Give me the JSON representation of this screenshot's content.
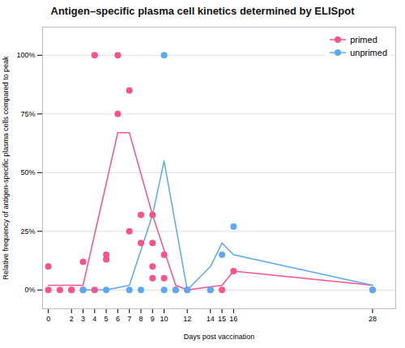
{
  "chart_data": {
    "type": "scatter",
    "title": "Antigen–specific plasma cell kinetics determined by ELISpot",
    "xlabel": "Days post vaccination",
    "ylabel": "Relative frequency of antigen-specific plasma cells compared to peak",
    "series": [
      {
        "name": "primed",
        "type": "line",
        "color": "#F8538D",
        "x": [
          0,
          3,
          6,
          7,
          9,
          11,
          12,
          15,
          16,
          28
        ],
        "values": [
          2,
          2,
          67,
          67,
          32,
          2,
          0,
          2,
          8,
          2
        ]
      },
      {
        "name": "unprimed",
        "type": "line",
        "color": "#5BA8F5",
        "x": [
          3,
          5,
          7,
          9,
          10,
          12,
          14,
          15,
          16,
          28
        ],
        "values": [
          0,
          0,
          2,
          32,
          55,
          0,
          10,
          20,
          15,
          2
        ]
      },
      {
        "name": "primed",
        "type": "scatter",
        "color": "#F8538D",
        "x": [
          0,
          0,
          1,
          2,
          2,
          3,
          3,
          4,
          4,
          5,
          5,
          6,
          6,
          7,
          7,
          8,
          8,
          9,
          9,
          9,
          9,
          10,
          10,
          11,
          12,
          14,
          15,
          16,
          28
        ],
        "values": [
          10,
          0,
          0,
          0,
          0,
          0,
          12,
          100,
          0,
          15,
          13,
          75,
          100,
          85,
          25,
          32,
          20,
          32,
          20,
          10,
          5,
          15,
          5,
          0,
          0,
          0,
          0,
          8,
          0
        ]
      },
      {
        "name": "unprimed",
        "type": "scatter",
        "color": "#5BA8F5",
        "x": [
          3,
          5,
          7,
          8,
          10,
          10,
          11,
          12,
          14,
          15,
          16,
          28
        ],
        "values": [
          0,
          0,
          0,
          0,
          100,
          0,
          0,
          0,
          0,
          15,
          27,
          0
        ]
      }
    ],
    "xlim": [
      -0.5,
      30
    ],
    "xticks": [
      0,
      2,
      3,
      4,
      5,
      6,
      7,
      8,
      9,
      10,
      12,
      14,
      15,
      16,
      28
    ],
    "ylim": [
      -8,
      112
    ],
    "yticks": [
      {
        "value": 0,
        "label": "0%"
      },
      {
        "value": 25,
        "label": "25%"
      },
      {
        "value": 50,
        "label": "50%"
      },
      {
        "value": 75,
        "label": "75%"
      },
      {
        "value": 100,
        "label": "100%"
      }
    ],
    "grid": true,
    "legend": "upper right"
  }
}
